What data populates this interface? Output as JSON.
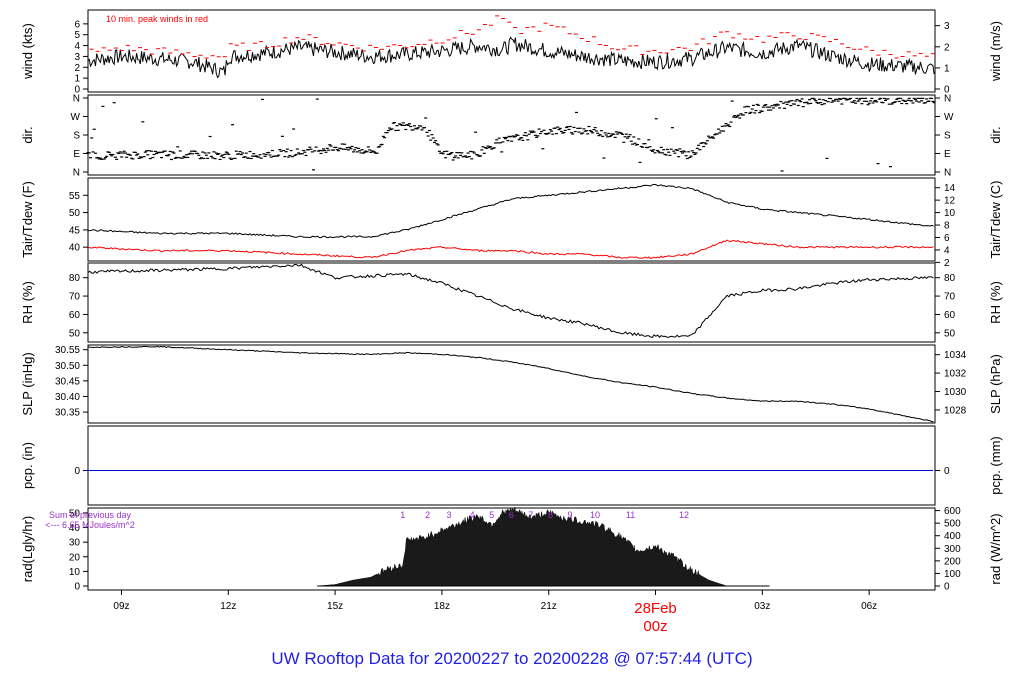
{
  "page_title": "UW Rooftop Data for 20200227  to  20200228 @ 07:57:44  (UTC)",
  "colors": {
    "line": "#000000",
    "dew": "#ff0000",
    "precip": "#0000cc",
    "title": "#1f1fe6",
    "annot": "#9933cc",
    "date": "#ff0000"
  },
  "chart_data": [
    {
      "type": "line",
      "id": "wind",
      "ylabel_left": "wind (kts)",
      "ylabel_right": "wind (m/s)",
      "annotation": "10 min. peak winds in red",
      "x_hours": [
        8,
        9,
        10,
        11,
        11.9,
        12,
        13,
        14,
        15,
        16,
        17,
        18,
        19,
        19.7,
        20,
        21,
        22,
        23,
        24,
        25,
        26,
        27,
        28,
        29,
        30,
        31.8
      ],
      "series": [
        {
          "values": [
            2.6,
            3.0,
            2.8,
            2.5,
            1.5,
            3.0,
            3.3,
            3.8,
            3.4,
            3.0,
            3.2,
            3.5,
            4.0,
            3.6,
            4.2,
            3.5,
            3.0,
            2.6,
            2.5,
            2.8,
            3.8,
            3.3,
            4.0,
            3.0,
            2.3,
            1.9
          ]
        },
        {
          "values": [
            3.3,
            3.8,
            3.5,
            3.2,
            3.0,
            3.8,
            4.0,
            4.8,
            4.2,
            3.8,
            4.0,
            4.6,
            5.4,
            6.6,
            5.3,
            5.8,
            4.8,
            3.7,
            3.5,
            3.8,
            5.2,
            4.6,
            5.0,
            4.4,
            3.5,
            2.9
          ]
        }
      ],
      "yticks_left": [
        "0",
        "1",
        "2",
        "3",
        "4",
        "5",
        "6"
      ],
      "ylim": [
        0,
        7
      ],
      "yticks_right": [
        "0",
        "1",
        "2",
        "3"
      ]
    },
    {
      "type": "scatter",
      "id": "direction",
      "ylabel_left": "dir.",
      "ylabel_right": "dir.",
      "x_hours": [
        8,
        10,
        12,
        14,
        15,
        16.2,
        16.5,
        17.5,
        18,
        19,
        19.5,
        20.5,
        21,
        22,
        23,
        24,
        25,
        26.5,
        27,
        28,
        29,
        30,
        31.8
      ],
      "values_deg": [
        80,
        85,
        80,
        95,
        120,
        100,
        220,
        225,
        85,
        80,
        140,
        180,
        200,
        205,
        180,
        110,
        85,
        300,
        310,
        335,
        350,
        345,
        350
      ],
      "yticks_left": [
        "N",
        "E",
        "S",
        "W",
        "N"
      ],
      "yticks_right": [
        "N",
        "E",
        "S",
        "W",
        "N"
      ]
    },
    {
      "type": "line",
      "id": "temperature",
      "ylabel_left": "Tair/Tdew (F)",
      "ylabel_right": "Tair/Tdew (C)",
      "x_hours": [
        8,
        10,
        12,
        14,
        16,
        17,
        18,
        19,
        20,
        21,
        22,
        23,
        24,
        25,
        26,
        27,
        28,
        29,
        30,
        31.8
      ],
      "series": [
        {
          "name": "Tair",
          "values": [
            45,
            44,
            44,
            43,
            43,
            45,
            48,
            51,
            54,
            55,
            56,
            57,
            58,
            57,
            53,
            51,
            50,
            49,
            48,
            46
          ]
        },
        {
          "name": "Tdew",
          "values": [
            40,
            39,
            39,
            38,
            37,
            39,
            40,
            39,
            39,
            38,
            38,
            37,
            37,
            38,
            42,
            41,
            40,
            40,
            40,
            40
          ]
        }
      ],
      "yticks_left": [
        "40",
        "45",
        "50",
        "55"
      ],
      "ylim": [
        36,
        60
      ],
      "yticks_right": [
        "2",
        "4",
        "6",
        "8",
        "10",
        "12",
        "14"
      ]
    },
    {
      "type": "line",
      "id": "rh",
      "ylabel_left": "RH (%)",
      "ylabel_right": "RH (%)",
      "x_hours": [
        8,
        10,
        12,
        14,
        15,
        16,
        17,
        18,
        19,
        20,
        21,
        22,
        23,
        24,
        25,
        26,
        27,
        28,
        29,
        30,
        31.8
      ],
      "values": [
        83,
        84,
        85,
        87,
        80,
        81,
        82,
        77,
        70,
        63,
        58,
        55,
        50,
        48,
        48,
        70,
        73,
        74,
        77,
        79,
        80
      ],
      "yticks_left": [
        "50",
        "60",
        "70",
        "80"
      ],
      "ylim": [
        45,
        88
      ],
      "yticks_right": [
        "50",
        "60",
        "70",
        "80"
      ]
    },
    {
      "type": "line",
      "id": "slp",
      "ylabel_left": "SLP (inHg)",
      "ylabel_right": "SLP (hPa)",
      "x_hours": [
        8,
        10,
        12,
        14,
        16,
        17,
        18,
        19,
        20,
        21,
        22,
        23,
        24,
        25,
        26,
        27,
        28,
        29,
        30,
        31.8
      ],
      "values": [
        30.558,
        30.56,
        30.55,
        30.54,
        30.535,
        30.54,
        30.535,
        30.525,
        30.51,
        30.49,
        30.465,
        30.445,
        30.43,
        30.41,
        30.395,
        30.385,
        30.385,
        30.375,
        30.36,
        30.32
      ],
      "yticks_left": [
        "30.35",
        "30.40",
        "30.45",
        "30.50",
        "30.55"
      ],
      "ylim": [
        30.315,
        30.565
      ],
      "yticks_right": [
        "1028",
        "1030",
        "1032",
        "1034"
      ]
    },
    {
      "type": "line",
      "id": "precip",
      "ylabel_left": "pcp. (in)",
      "ylabel_right": "pcp. (mm)",
      "x_hours": [
        8,
        31.8
      ],
      "values": [
        0,
        0
      ],
      "yticks_left": [
        "0"
      ],
      "yticks_right": [
        "0"
      ]
    },
    {
      "type": "area",
      "id": "radiation",
      "ylabel_left": "rad(Lgly/hr)",
      "ylabel_right": "rad (W/m^2)",
      "annotation_1": "Sum of previous day",
      "annotation_2": "<--- 6.65 MJoules/m^2",
      "x_hours": [
        14.5,
        15,
        15.5,
        16,
        16.5,
        16.9,
        17.0,
        17.5,
        18,
        18.5,
        19,
        19.4,
        19.7,
        20,
        20.5,
        21,
        21.5,
        22,
        22.5,
        23,
        23.5,
        24,
        24.5,
        25,
        25.5,
        26
      ],
      "values": [
        0,
        1,
        4,
        6,
        12,
        14,
        31,
        33,
        38,
        43,
        48,
        42,
        50,
        52,
        47,
        50,
        46,
        44,
        41,
        34,
        24,
        27,
        20,
        11,
        4,
        0
      ],
      "yticks_left": [
        "0",
        "10",
        "20",
        "30",
        "40",
        "50"
      ],
      "ylim": [
        0,
        52
      ],
      "yticks_right": [
        "0",
        "100",
        "200",
        "300",
        "400",
        "500",
        "600"
      ],
      "hour_labels": [
        "1",
        "2",
        "3",
        "4",
        "5",
        "6",
        "7",
        "8",
        "9",
        "10",
        "11",
        "12"
      ]
    }
  ],
  "x_axis": {
    "ticks": [
      "09z",
      "12z",
      "15z",
      "18z",
      "21z",
      "00z",
      "03z",
      "06z"
    ],
    "tick_hours": [
      9,
      12,
      15,
      18,
      21,
      24,
      27,
      30
    ],
    "date_label": "28Feb",
    "midnight_label": "00z",
    "xlim": [
      8.06,
      31.85
    ]
  }
}
